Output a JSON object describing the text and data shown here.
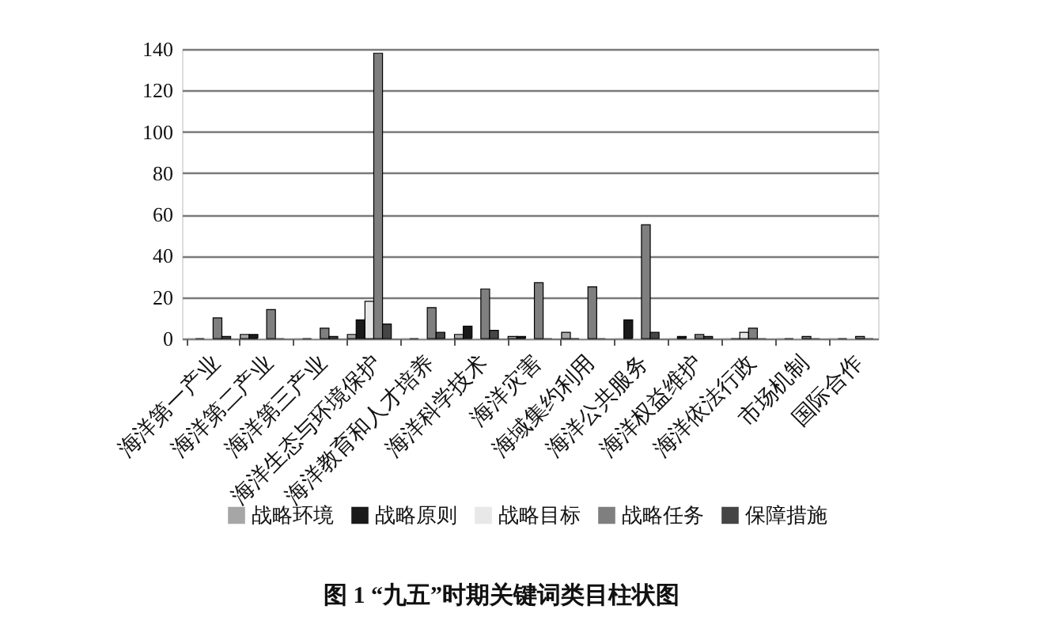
{
  "chart_data": {
    "type": "bar",
    "title": "图 1 “九五”时期关键词类目柱状图",
    "categories": [
      "海洋第一产业",
      "海洋第二产业",
      "海洋第三产业",
      "海洋生态与环境保护",
      "海洋教育和人才培养",
      "海洋科学技术",
      "海洋灾害",
      "海域集约利用",
      "海洋公共服务",
      "海洋权益维护",
      "海洋依法行政",
      "市场机制",
      "国际合作"
    ],
    "series": [
      {
        "name": "战略环境",
        "color": "#a6a6a6",
        "values": [
          0,
          2,
          0,
          2,
          0,
          2,
          1,
          3,
          0,
          0,
          0,
          0,
          0
        ]
      },
      {
        "name": "战略原则",
        "color": "#1a1a1a",
        "values": [
          0,
          2,
          0,
          9,
          0,
          6,
          1,
          0,
          9,
          1,
          0,
          0,
          0
        ]
      },
      {
        "name": "战略目标",
        "color": "#e8e8e8",
        "values": [
          0,
          0,
          0,
          18,
          0,
          0,
          0,
          0,
          0,
          0,
          3,
          0,
          0
        ]
      },
      {
        "name": "战略任务",
        "color": "#7f7f7f",
        "values": [
          10,
          14,
          5,
          138,
          15,
          24,
          27,
          25,
          55,
          2,
          5,
          1,
          1
        ]
      },
      {
        "name": "保障措施",
        "color": "#454545",
        "values": [
          1,
          0,
          1,
          7,
          3,
          4,
          0,
          0,
          3,
          1,
          0,
          0,
          0
        ]
      }
    ],
    "ylim": [
      0,
      140
    ],
    "yticks": [
      0,
      20,
      40,
      60,
      80,
      100,
      120,
      140
    ],
    "grid": "y",
    "legend": "bottom"
  }
}
